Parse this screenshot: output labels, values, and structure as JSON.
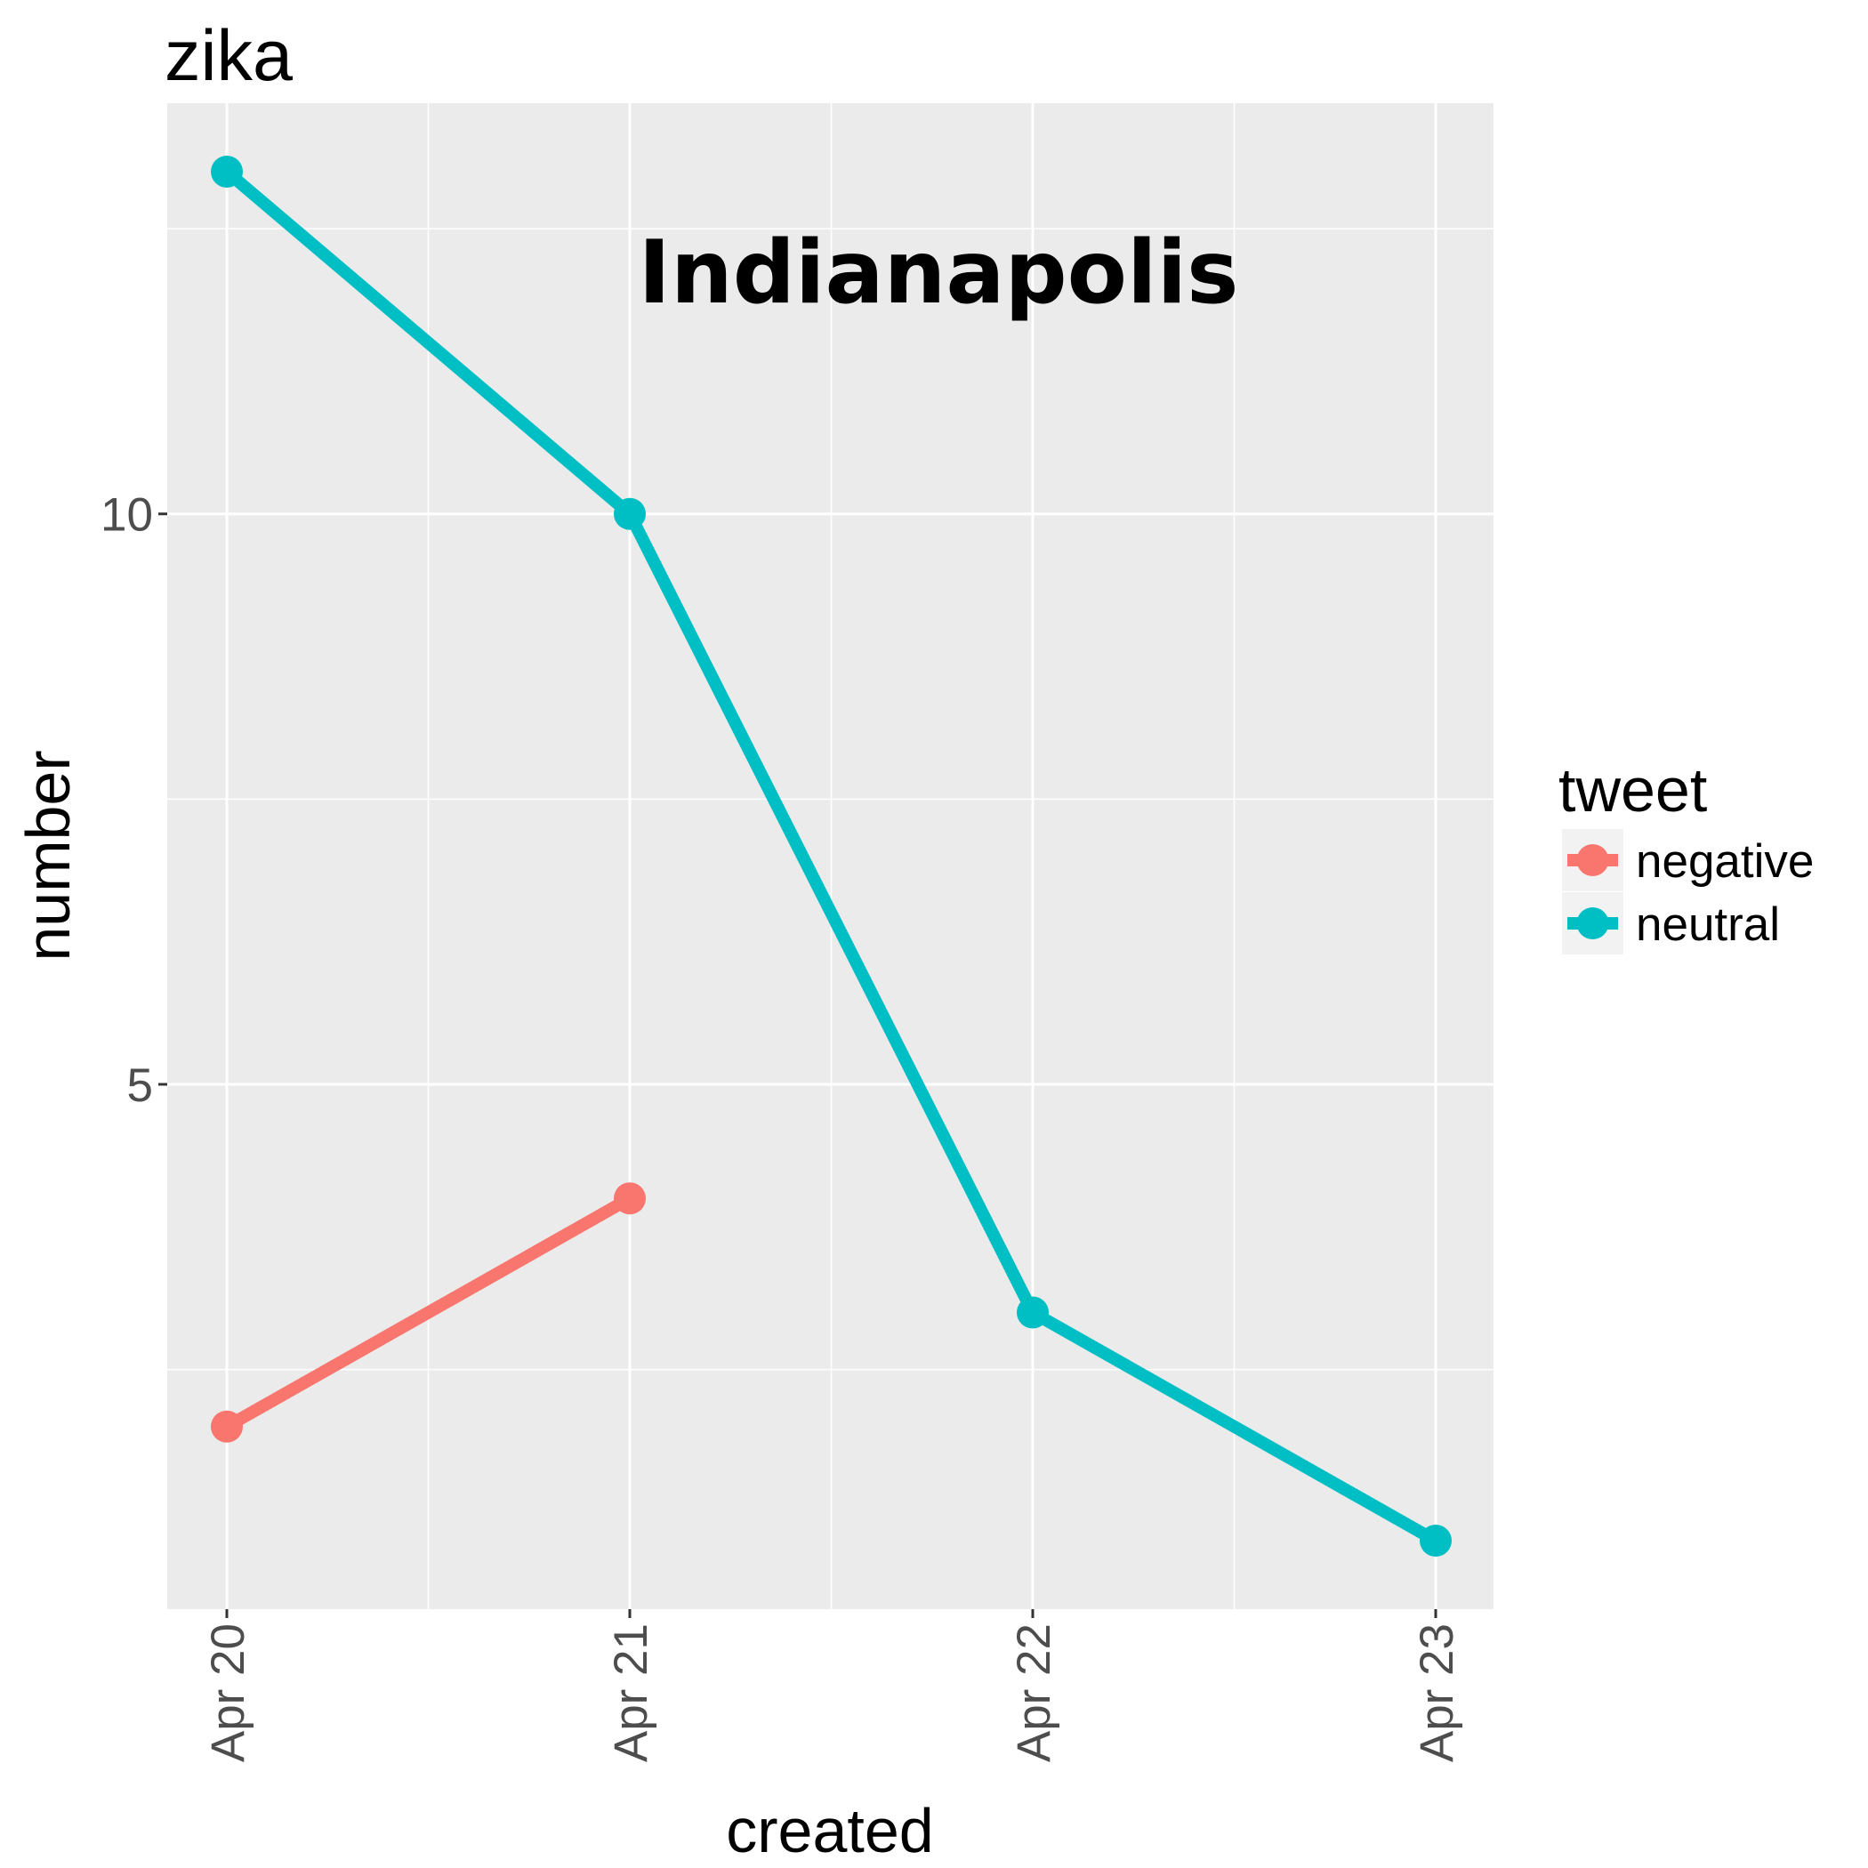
{
  "chart_data": {
    "type": "line",
    "title": "zika",
    "annotation": "Indianapolis",
    "xlabel": "created",
    "ylabel": "number",
    "categories": [
      "Apr 20",
      "Apr 21",
      "Apr 22",
      "Apr 23"
    ],
    "y_ticks": [
      5,
      10
    ],
    "y_tick_labels": [
      "5",
      "10"
    ],
    "ylim": [
      0.4,
      13.6
    ],
    "grid": true,
    "legend": {
      "title": "tweet",
      "placement": "right"
    },
    "series": [
      {
        "name": "negative",
        "color": "#F8766D",
        "values": [
          2,
          4,
          null,
          null
        ]
      },
      {
        "name": "neutral",
        "color": "#00BFC4",
        "values": [
          13,
          10,
          3,
          1
        ]
      }
    ],
    "panel_background": "#EBEBEB",
    "grid_color": "#FFFFFF"
  }
}
